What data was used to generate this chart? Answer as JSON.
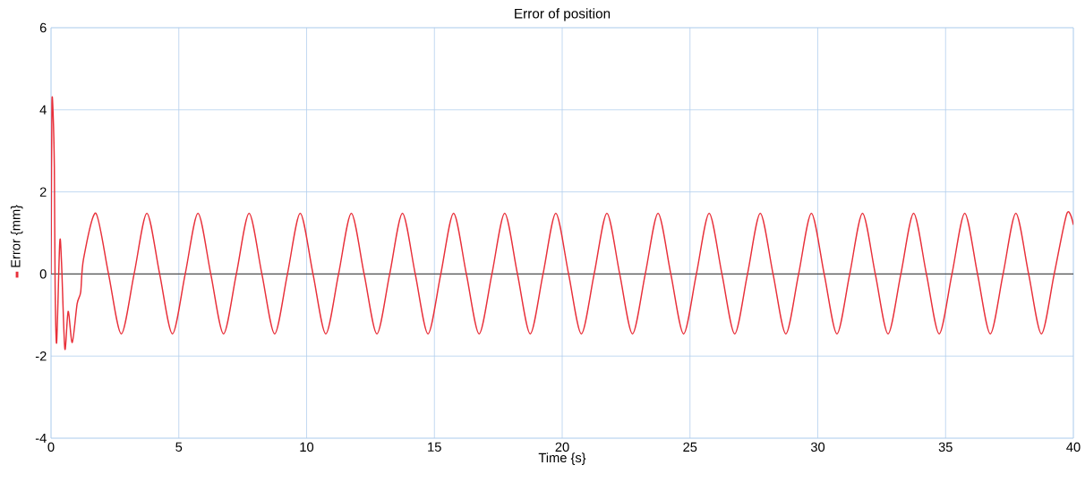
{
  "chart_data": {
    "type": "line",
    "title": "Error of position",
    "xlabel": "Time {s}",
    "x": [
      0,
      0.01,
      0.035,
      0.08,
      0.13,
      0.16,
      0.22,
      0.34,
      0.41,
      0.54,
      0.67,
      0.83,
      1.02,
      1.16,
      1.27,
      1.75,
      2.25,
      2.75,
      3.25,
      3.75,
      4.25,
      4.75,
      5.25,
      5.75,
      6.25,
      6.75,
      7.25,
      7.75,
      8.25,
      8.75,
      9.25,
      9.75,
      10.25,
      10.75,
      11.25,
      11.75,
      12.25,
      12.75,
      13.25,
      13.75,
      14.25,
      14.75,
      15.25,
      15.75,
      16.25,
      16.75,
      17.25,
      17.75,
      18.25,
      18.75,
      19.25,
      19.75,
      20.25,
      20.75,
      21.25,
      21.75,
      22.25,
      22.75,
      23.25,
      23.75,
      24.25,
      24.75,
      25.25,
      25.75,
      26.25,
      26.75,
      27.25,
      27.75,
      28.25,
      28.75,
      29.25,
      29.75,
      30.25,
      30.75,
      31.25,
      31.75,
      32.25,
      32.75,
      33.25,
      33.75,
      34.25,
      34.75,
      35.25,
      35.75,
      36.25,
      36.75,
      37.25,
      37.75,
      38.25,
      38.75,
      39.25,
      39.75,
      40
    ],
    "series": [
      {
        "name": "Error {mm}",
        "color": "#e8303a",
        "values": [
          0,
          1.13,
          4.15,
          3.93,
          2.6,
          -0.3,
          -1.67,
          0.76,
          0.29,
          -1.82,
          -0.91,
          -1.67,
          -0.73,
          -0.44,
          0.36,
          1.48,
          0,
          -1.46,
          0,
          1.48,
          0,
          -1.46,
          0,
          1.48,
          0,
          -1.46,
          0,
          1.48,
          0,
          -1.46,
          0,
          1.48,
          0,
          -1.46,
          0,
          1.48,
          0,
          -1.46,
          0,
          1.48,
          0,
          -1.46,
          0,
          1.48,
          0,
          -1.46,
          0,
          1.48,
          0,
          -1.46,
          0,
          1.48,
          0,
          -1.46,
          0,
          1.48,
          0,
          -1.46,
          0,
          1.48,
          0,
          -1.46,
          0,
          1.48,
          0,
          -1.46,
          0,
          1.48,
          0,
          -1.46,
          0,
          1.48,
          0,
          -1.46,
          0,
          1.48,
          0,
          -1.46,
          0,
          1.48,
          0,
          -1.46,
          0,
          1.48,
          0,
          -1.46,
          0,
          1.48,
          0,
          -1.46,
          0,
          1.48,
          1.2
        ]
      }
    ],
    "xlim": [
      0,
      40
    ],
    "ylim": [
      -4,
      6
    ],
    "xticks": [
      0,
      5,
      10,
      15,
      20,
      25,
      30,
      35,
      40
    ],
    "yticks": [
      -4,
      -2,
      0,
      2,
      4,
      6
    ],
    "grid": true,
    "legend": "left",
    "marker": "none",
    "line_style": "solid"
  }
}
